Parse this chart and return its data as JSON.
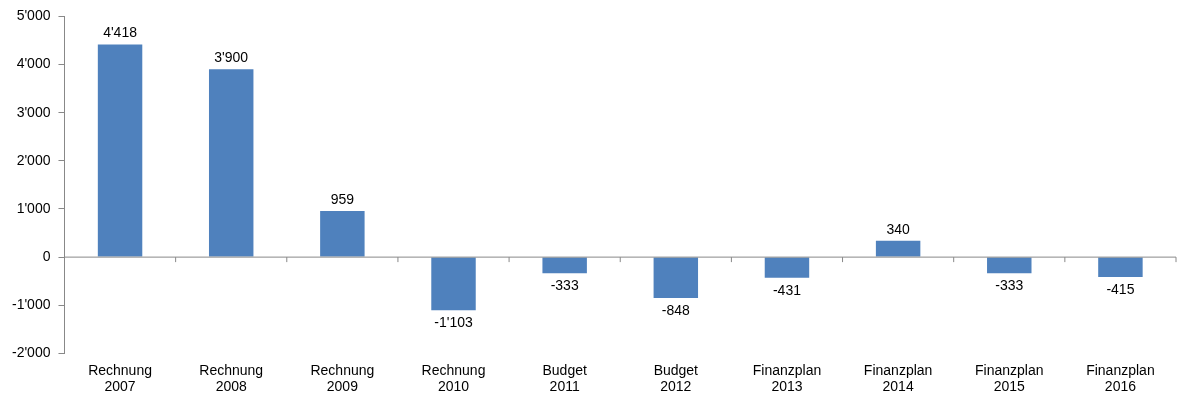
{
  "chart_data": {
    "type": "bar",
    "categories": [
      "Rechnung 2007",
      "Rechnung 2008",
      "Rechnung 2009",
      "Rechnung 2010",
      "Budget 2011",
      "Budget 2012",
      "Finanzplan 2013",
      "Finanzplan 2014",
      "Finanzplan 2015",
      "Finanzplan 2016"
    ],
    "values": [
      4418,
      3900,
      959,
      -1103,
      -333,
      -848,
      -431,
      340,
      -333,
      -415
    ],
    "value_labels": [
      "4'418",
      "3'900",
      "959",
      "-1'103",
      "-333",
      "-848",
      "-431",
      "340",
      "-333",
      "-415"
    ],
    "color": "#4f81bd",
    "ylim": [
      -2000,
      5000
    ],
    "yticks": [
      {
        "value": -2000,
        "label": "-2'000"
      },
      {
        "value": -1000,
        "label": "-1'000"
      },
      0,
      {
        "value": 1000,
        "label": "1'000"
      },
      {
        "value": 2000,
        "label": "2'000"
      },
      {
        "value": 3000,
        "label": "3'000"
      },
      {
        "value": 4000,
        "label": "4'000"
      },
      {
        "value": 5000,
        "label": "5'000"
      }
    ],
    "legend": false
  }
}
